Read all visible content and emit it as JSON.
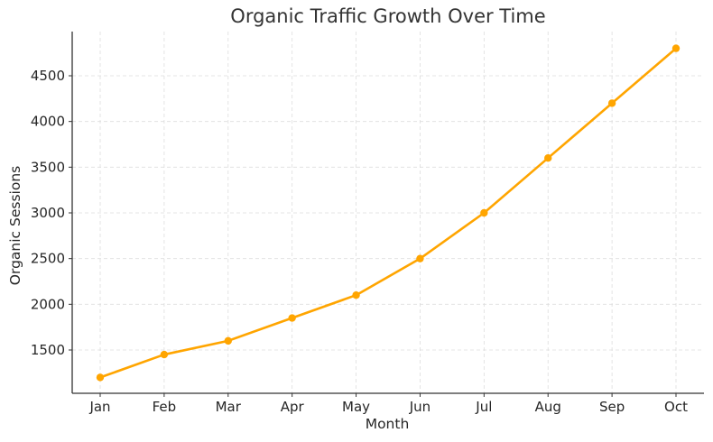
{
  "chart_data": {
    "type": "line",
    "title": "Organic Traffic Growth Over Time",
    "xlabel": "Month",
    "ylabel": "Organic Sessions",
    "categories": [
      "Jan",
      "Feb",
      "Mar",
      "Apr",
      "May",
      "Jun",
      "Jul",
      "Aug",
      "Sep",
      "Oct"
    ],
    "series": [
      {
        "name": "Organic Sessions",
        "values": [
          1200,
          1450,
          1600,
          1850,
          2100,
          2500,
          3000,
          3600,
          4200,
          4800
        ],
        "color": "#FFA500",
        "marker": "circle"
      }
    ],
    "yticks": [
      1500,
      2000,
      2500,
      3000,
      3500,
      4000,
      4500
    ],
    "ylim": [
      1020,
      4980
    ],
    "grid": true,
    "legend": null
  }
}
